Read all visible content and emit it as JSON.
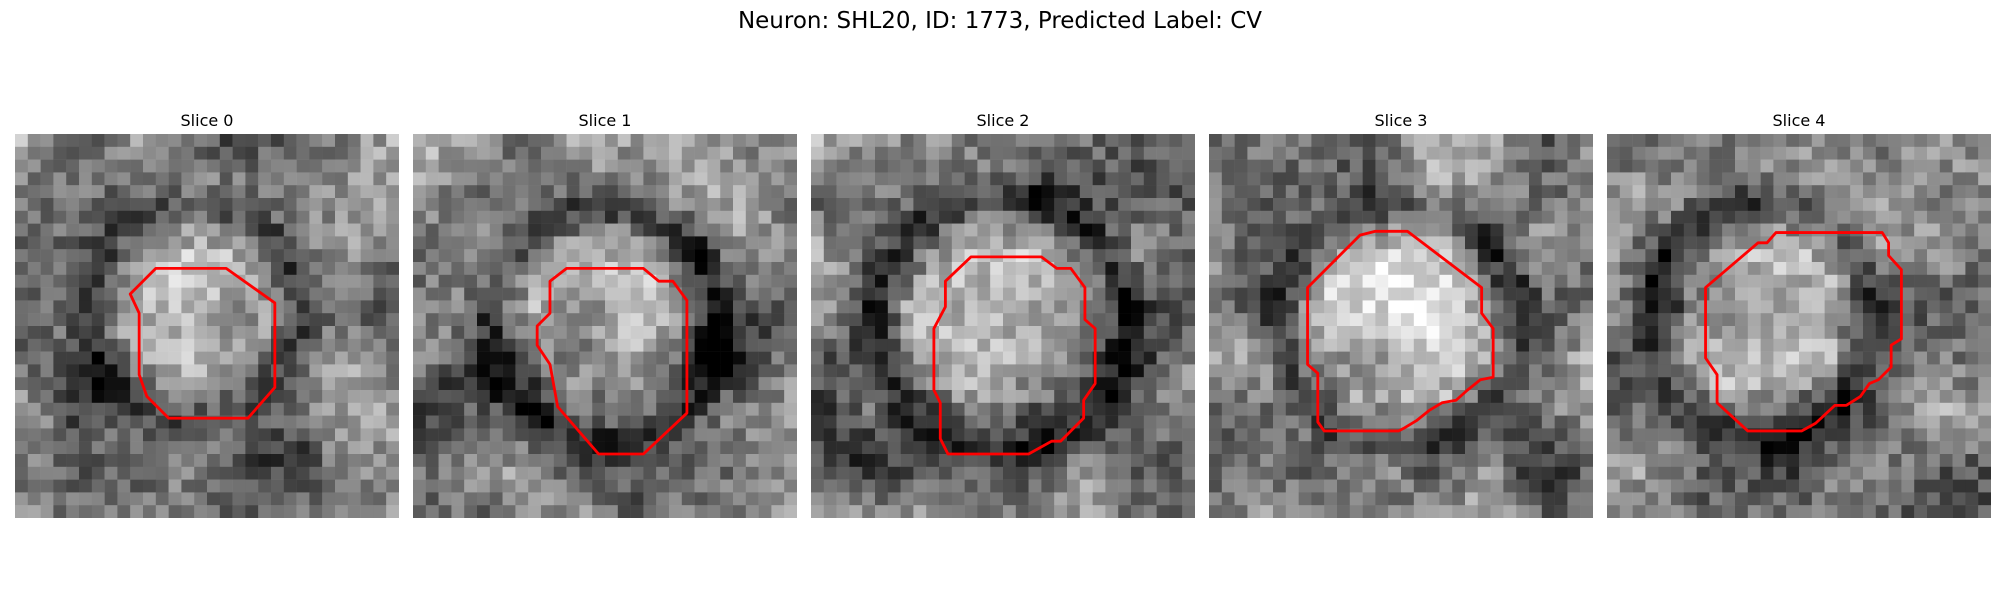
{
  "figure": {
    "title": "Neuron: SHL20, ID: 1773, Predicted Label: CV",
    "overlay_color": "#ff0000",
    "colormap": "gray",
    "panels": [
      {
        "title": "Slice 0"
      },
      {
        "title": "Slice 1"
      },
      {
        "title": "Slice 2"
      },
      {
        "title": "Slice 3"
      },
      {
        "title": "Slice 4"
      }
    ]
  }
}
